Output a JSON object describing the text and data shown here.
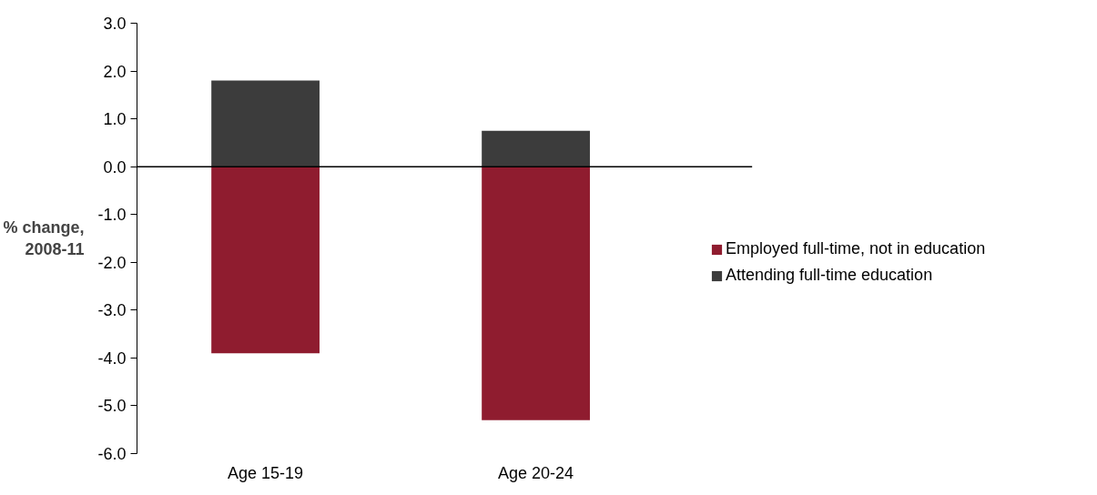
{
  "chart_data": {
    "type": "bar",
    "stacked": true,
    "ylabel": "% change, 2008-11",
    "categories": [
      "Age 15-19",
      "Age 20-24"
    ],
    "series": [
      {
        "name": "Employed full-time, not in education",
        "color": "#8f1c2f",
        "values": [
          -3.9,
          -5.3
        ]
      },
      {
        "name": "Attending full-time education",
        "color": "#3c3c3c",
        "values": [
          1.8,
          0.75
        ]
      }
    ],
    "ylim": [
      -6.0,
      3.0
    ],
    "yticks": [
      {
        "value": -6,
        "label": "-6.0"
      },
      {
        "value": -5,
        "label": "-5.0"
      },
      {
        "value": -4,
        "label": "-4.0"
      },
      {
        "value": -3,
        "label": "-3.0"
      },
      {
        "value": -2,
        "label": "-2.0"
      },
      {
        "value": -1,
        "label": "-1.0"
      },
      {
        "value": 0,
        "label": "0.0"
      },
      {
        "value": 1,
        "label": "1.0"
      },
      {
        "value": 2,
        "label": "2.0"
      },
      {
        "value": 3,
        "label": "3.0"
      }
    ],
    "ref_lines": [
      {
        "axis": "y",
        "value": 0,
        "color": "#000000"
      }
    ],
    "grid": false,
    "legend": "right"
  }
}
